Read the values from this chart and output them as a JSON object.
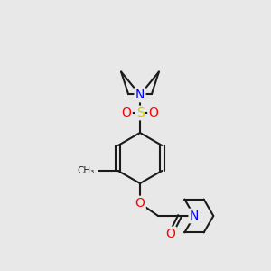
{
  "bg_color": "#e8e8e8",
  "bond_color": "#1a1a1a",
  "bond_width": 1.5,
  "atom_colors": {
    "N": "#0000ff",
    "O": "#ff0000",
    "S": "#cccc00",
    "C": "#1a1a1a"
  },
  "font_size_atom": 9,
  "font_size_label": 7
}
